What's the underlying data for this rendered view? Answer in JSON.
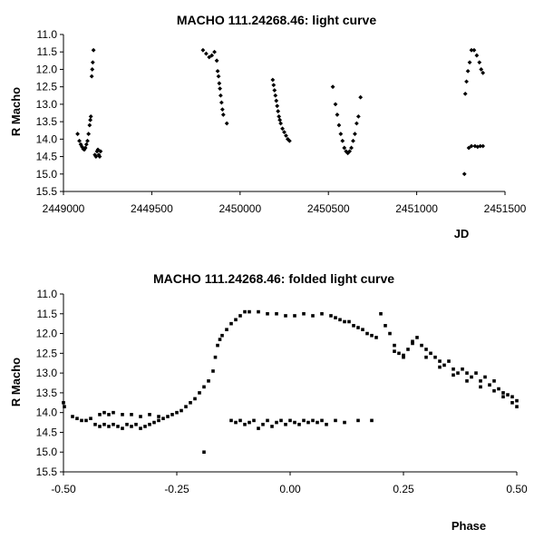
{
  "chart_data": [
    {
      "type": "scatter",
      "title": "MACHO 111.24268.46: light curve",
      "xlabel": "JD",
      "ylabel": "R Macho",
      "xlim": [
        2449000,
        2451500
      ],
      "ylim": [
        15.5,
        11.0
      ],
      "y_inverted": true,
      "grid": false,
      "marker_color": "#000000",
      "xticks": [
        2449000,
        2449500,
        2450000,
        2450500,
        2451000,
        2451500
      ],
      "xtick_labels": [
        "2449000",
        "2449500",
        "2450000",
        "2450500",
        "2451000",
        "2451500"
      ],
      "yticks": [
        11.0,
        11.5,
        12.0,
        12.5,
        13.0,
        13.5,
        14.0,
        14.5,
        15.0,
        15.5
      ],
      "ytick_labels": [
        "11.0",
        "11.5",
        "12.0",
        "12.5",
        "13.0",
        "13.5",
        "14.0",
        "14.5",
        "15.0",
        "15.5"
      ],
      "points": [
        [
          2449080,
          13.85
        ],
        [
          2449090,
          14.05
        ],
        [
          2449098,
          14.15
        ],
        [
          2449105,
          14.22
        ],
        [
          2449112,
          14.28
        ],
        [
          2449118,
          14.3
        ],
        [
          2449124,
          14.25
        ],
        [
          2449130,
          14.15
        ],
        [
          2449136,
          14.05
        ],
        [
          2449142,
          13.85
        ],
        [
          2449148,
          13.6
        ],
        [
          2449152,
          13.45
        ],
        [
          2449155,
          13.35
        ],
        [
          2449160,
          12.2
        ],
        [
          2449163,
          12.0
        ],
        [
          2449166,
          11.8
        ],
        [
          2449170,
          11.45
        ],
        [
          2449178,
          14.45
        ],
        [
          2449184,
          14.5
        ],
        [
          2449190,
          14.35
        ],
        [
          2449195,
          14.3
        ],
        [
          2449200,
          14.45
        ],
        [
          2449205,
          14.5
        ],
        [
          2449210,
          14.35
        ],
        [
          2449790,
          11.45
        ],
        [
          2449808,
          11.55
        ],
        [
          2449825,
          11.65
        ],
        [
          2449840,
          11.6
        ],
        [
          2449855,
          11.5
        ],
        [
          2449868,
          11.75
        ],
        [
          2449873,
          12.05
        ],
        [
          2449878,
          12.2
        ],
        [
          2449882,
          12.4
        ],
        [
          2449886,
          12.55
        ],
        [
          2449890,
          12.75
        ],
        [
          2449895,
          12.95
        ],
        [
          2449900,
          13.15
        ],
        [
          2449905,
          13.3
        ],
        [
          2449925,
          13.55
        ],
        [
          2450185,
          12.3
        ],
        [
          2450190,
          12.45
        ],
        [
          2450195,
          12.6
        ],
        [
          2450200,
          12.75
        ],
        [
          2450205,
          12.9
        ],
        [
          2450210,
          13.05
        ],
        [
          2450215,
          13.2
        ],
        [
          2450220,
          13.35
        ],
        [
          2450225,
          13.45
        ],
        [
          2450230,
          13.55
        ],
        [
          2450240,
          13.7
        ],
        [
          2450250,
          13.8
        ],
        [
          2450260,
          13.9
        ],
        [
          2450270,
          14.0
        ],
        [
          2450280,
          14.05
        ],
        [
          2450525,
          12.5
        ],
        [
          2450540,
          13.0
        ],
        [
          2450550,
          13.3
        ],
        [
          2450560,
          13.6
        ],
        [
          2450570,
          13.85
        ],
        [
          2450580,
          14.05
        ],
        [
          2450590,
          14.25
        ],
        [
          2450600,
          14.35
        ],
        [
          2450610,
          14.4
        ],
        [
          2450620,
          14.35
        ],
        [
          2450630,
          14.25
        ],
        [
          2450640,
          14.05
        ],
        [
          2450650,
          13.85
        ],
        [
          2450660,
          13.55
        ],
        [
          2450670,
          13.35
        ],
        [
          2450682,
          12.8
        ],
        [
          2451270,
          15.0
        ],
        [
          2451275,
          12.7
        ],
        [
          2451282,
          12.35
        ],
        [
          2451290,
          12.05
        ],
        [
          2451300,
          11.8
        ],
        [
          2451310,
          11.45
        ],
        [
          2451325,
          11.45
        ],
        [
          2451340,
          11.6
        ],
        [
          2451355,
          11.8
        ],
        [
          2451365,
          12.0
        ],
        [
          2451375,
          12.1
        ],
        [
          2451295,
          14.25
        ],
        [
          2451310,
          14.2
        ],
        [
          2451330,
          14.2
        ],
        [
          2451345,
          14.22
        ],
        [
          2451360,
          14.2
        ],
        [
          2451375,
          14.2
        ]
      ]
    },
    {
      "type": "scatter",
      "title": "MACHO 111.24268.46: folded light curve",
      "xlabel": "Phase",
      "ylabel": "R Macho",
      "xlim": [
        -0.5,
        0.5
      ],
      "ylim": [
        15.5,
        11.0
      ],
      "y_inverted": true,
      "grid": false,
      "marker_color": "#000000",
      "xticks": [
        -0.5,
        -0.25,
        0,
        0.25,
        0.5
      ],
      "xtick_labels": [
        "-0.50",
        "-0.25",
        "0.00",
        "0.25",
        "0.50"
      ],
      "yticks": [
        11.0,
        11.5,
        12.0,
        12.5,
        13.0,
        13.5,
        14.0,
        14.5,
        15.0,
        15.5
      ],
      "ytick_labels": [
        "11.0",
        "11.5",
        "12.0",
        "12.5",
        "13.0",
        "13.5",
        "14.0",
        "14.5",
        "15.0",
        "15.5"
      ],
      "points": [
        [
          -0.5,
          13.75
        ],
        [
          -0.498,
          13.85
        ],
        [
          -0.48,
          14.1
        ],
        [
          -0.47,
          14.15
        ],
        [
          -0.46,
          14.2
        ],
        [
          -0.45,
          14.2
        ],
        [
          -0.44,
          14.15
        ],
        [
          -0.43,
          14.3
        ],
        [
          -0.42,
          14.35
        ],
        [
          -0.41,
          14.3
        ],
        [
          -0.4,
          14.35
        ],
        [
          -0.39,
          14.3
        ],
        [
          -0.38,
          14.35
        ],
        [
          -0.37,
          14.4
        ],
        [
          -0.36,
          14.3
        ],
        [
          -0.35,
          14.35
        ],
        [
          -0.34,
          14.3
        ],
        [
          -0.33,
          14.4
        ],
        [
          -0.32,
          14.35
        ],
        [
          -0.31,
          14.3
        ],
        [
          -0.3,
          14.25
        ],
        [
          -0.29,
          14.2
        ],
        [
          -0.28,
          14.15
        ],
        [
          -0.27,
          14.1
        ],
        [
          -0.26,
          14.05
        ],
        [
          -0.25,
          14.0
        ],
        [
          -0.24,
          13.95
        ],
        [
          -0.23,
          13.85
        ],
        [
          -0.22,
          13.75
        ],
        [
          -0.21,
          13.65
        ],
        [
          -0.2,
          13.5
        ],
        [
          -0.19,
          13.35
        ],
        [
          -0.18,
          13.2
        ],
        [
          -0.17,
          12.95
        ],
        [
          -0.165,
          12.6
        ],
        [
          -0.16,
          12.3
        ],
        [
          -0.155,
          12.15
        ],
        [
          -0.15,
          12.05
        ],
        [
          -0.14,
          11.9
        ],
        [
          -0.13,
          11.75
        ],
        [
          -0.12,
          11.65
        ],
        [
          -0.11,
          11.55
        ],
        [
          -0.1,
          11.45
        ],
        [
          -0.09,
          11.45
        ],
        [
          -0.07,
          11.45
        ],
        [
          -0.05,
          11.5
        ],
        [
          -0.03,
          11.5
        ],
        [
          -0.01,
          11.55
        ],
        [
          0.01,
          11.55
        ],
        [
          0.03,
          11.5
        ],
        [
          0.05,
          11.55
        ],
        [
          0.07,
          11.5
        ],
        [
          0.09,
          11.55
        ],
        [
          0.1,
          11.6
        ],
        [
          0.11,
          11.65
        ],
        [
          0.12,
          11.7
        ],
        [
          0.13,
          11.7
        ],
        [
          0.14,
          11.8
        ],
        [
          0.15,
          11.85
        ],
        [
          0.16,
          11.9
        ],
        [
          0.17,
          12.0
        ],
        [
          0.18,
          12.05
        ],
        [
          0.19,
          12.1
        ],
        [
          -0.42,
          14.05
        ],
        [
          -0.41,
          14.0
        ],
        [
          -0.4,
          14.05
        ],
        [
          -0.39,
          14.0
        ],
        [
          -0.37,
          14.05
        ],
        [
          -0.35,
          14.05
        ],
        [
          -0.33,
          14.1
        ],
        [
          -0.31,
          14.05
        ],
        [
          -0.29,
          14.1
        ],
        [
          -0.13,
          14.2
        ],
        [
          -0.12,
          14.25
        ],
        [
          -0.11,
          14.2
        ],
        [
          -0.1,
          14.3
        ],
        [
          -0.09,
          14.25
        ],
        [
          -0.08,
          14.2
        ],
        [
          -0.07,
          14.4
        ],
        [
          -0.06,
          14.3
        ],
        [
          -0.05,
          14.2
        ],
        [
          -0.04,
          14.35
        ],
        [
          -0.03,
          14.25
        ],
        [
          -0.02,
          14.2
        ],
        [
          -0.01,
          14.3
        ],
        [
          0.0,
          14.2
        ],
        [
          0.01,
          14.25
        ],
        [
          0.02,
          14.3
        ],
        [
          0.03,
          14.2
        ],
        [
          0.04,
          14.25
        ],
        [
          0.05,
          14.2
        ],
        [
          0.06,
          14.25
        ],
        [
          0.07,
          14.2
        ],
        [
          0.08,
          14.3
        ],
        [
          0.1,
          14.2
        ],
        [
          0.12,
          14.25
        ],
        [
          0.15,
          14.2
        ],
        [
          0.18,
          14.2
        ],
        [
          -0.19,
          15.0
        ],
        [
          0.2,
          11.5
        ],
        [
          0.21,
          11.8
        ],
        [
          0.22,
          12.0
        ],
        [
          0.23,
          12.3
        ],
        [
          0.24,
          12.5
        ],
        [
          0.25,
          12.6
        ],
        [
          0.26,
          12.4
        ],
        [
          0.27,
          12.2
        ],
        [
          0.28,
          12.1
        ],
        [
          0.29,
          12.3
        ],
        [
          0.3,
          12.4
        ],
        [
          0.31,
          12.5
        ],
        [
          0.32,
          12.6
        ],
        [
          0.33,
          12.7
        ],
        [
          0.34,
          12.8
        ],
        [
          0.35,
          12.7
        ],
        [
          0.36,
          12.9
        ],
        [
          0.37,
          13.0
        ],
        [
          0.38,
          12.9
        ],
        [
          0.39,
          13.0
        ],
        [
          0.4,
          13.1
        ],
        [
          0.41,
          13.0
        ],
        [
          0.42,
          13.2
        ],
        [
          0.43,
          13.1
        ],
        [
          0.44,
          13.3
        ],
        [
          0.45,
          13.2
        ],
        [
          0.46,
          13.4
        ],
        [
          0.47,
          13.5
        ],
        [
          0.48,
          13.55
        ],
        [
          0.49,
          13.6
        ],
        [
          0.5,
          13.7
        ],
        [
          0.23,
          12.45
        ],
        [
          0.25,
          12.55
        ],
        [
          0.27,
          12.25
        ],
        [
          0.3,
          12.6
        ],
        [
          0.33,
          12.85
        ],
        [
          0.36,
          13.05
        ],
        [
          0.39,
          13.2
        ],
        [
          0.42,
          13.35
        ],
        [
          0.45,
          13.45
        ],
        [
          0.47,
          13.6
        ],
        [
          0.49,
          13.75
        ],
        [
          0.5,
          13.85
        ]
      ]
    }
  ]
}
